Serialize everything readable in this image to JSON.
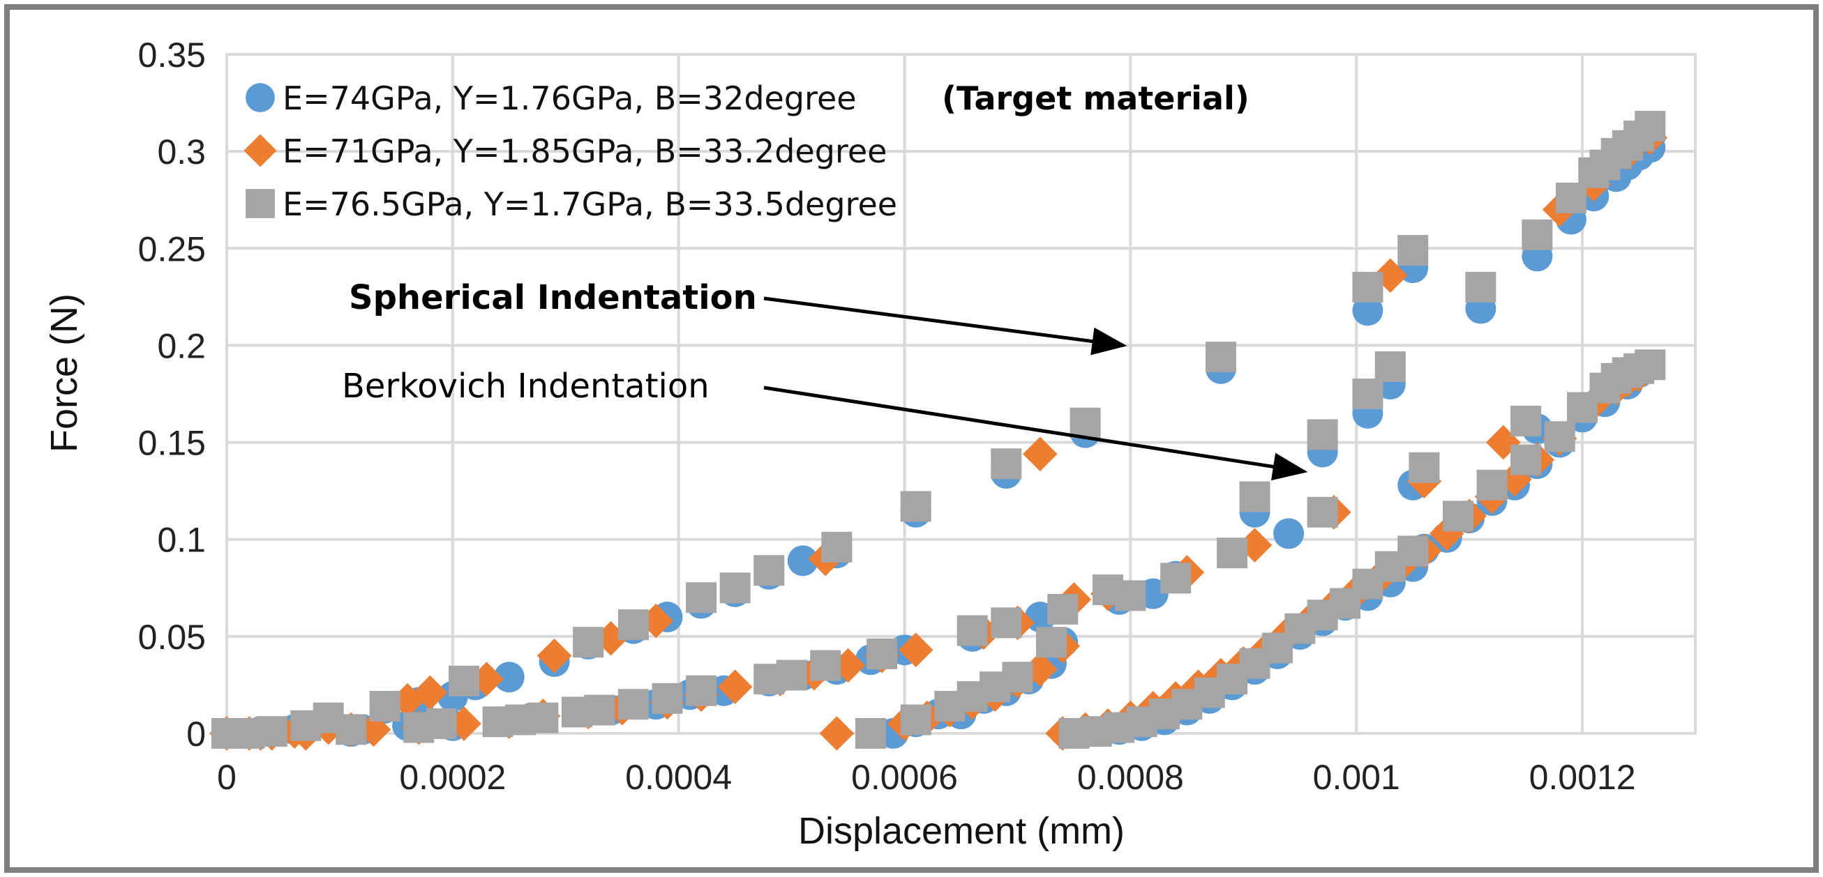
{
  "chart_data": {
    "type": "scatter",
    "title": "",
    "xlabel": "Displacement (mm)",
    "ylabel": "Force (N)",
    "xlim": [
      0,
      0.0013
    ],
    "ylim": [
      0,
      0.35
    ],
    "x_ticks": [
      "0",
      "0.0002",
      "0.0004",
      "0.0006",
      "0.0008",
      "0.001",
      "0.0012"
    ],
    "y_ticks": [
      "0",
      "0.05",
      "0.1",
      "0.15",
      "0.2",
      "0.25",
      "0.3",
      "0.35"
    ],
    "x_tick_values": [
      0,
      0.0002,
      0.0004,
      0.0006,
      0.0008,
      0.001,
      0.0012
    ],
    "y_tick_values": [
      0,
      0.05,
      0.1,
      0.15,
      0.2,
      0.25,
      0.3,
      0.35
    ],
    "grid": true,
    "legend_position": "top-left",
    "legend_note": "(Target material)",
    "series": [
      {
        "name": "E=74GPa, Y=1.76GPa, B=32degree",
        "marker": "circle",
        "color": "#5B9BD5",
        "points": [
          [
            0,
            0
          ],
          [
            2e-05,
            0
          ],
          [
            4e-05,
            0.001
          ],
          [
            6e-05,
            0.002
          ],
          [
            9e-05,
            0.006
          ],
          [
            0.00011,
            0.001
          ],
          [
            0.00014,
            0.013
          ],
          [
            0.00017,
            0.016
          ],
          [
            0.0002,
            0.019
          ],
          [
            0.00022,
            0.025
          ],
          [
            0.00025,
            0.029
          ],
          [
            0.00029,
            0.037
          ],
          [
            0.00032,
            0.046
          ],
          [
            0.00036,
            0.054
          ],
          [
            0.00039,
            0.06
          ],
          [
            0.00042,
            0.067
          ],
          [
            0.00045,
            0.073
          ],
          [
            0.00048,
            0.082
          ],
          [
            0.00051,
            0.089
          ],
          [
            0.00054,
            0.093
          ],
          [
            0.00061,
            0.114
          ],
          [
            0.00069,
            0.134
          ],
          [
            0.00076,
            0.155
          ],
          [
            0.00088,
            0.188
          ],
          [
            0.00101,
            0.218
          ],
          [
            0.00105,
            0.24
          ],
          [
            0.00111,
            0.219
          ],
          [
            0.00116,
            0.246
          ],
          [
            0.00119,
            0.265
          ],
          [
            0.00121,
            0.277
          ],
          [
            0.00123,
            0.287
          ],
          [
            0.00124,
            0.293
          ],
          [
            0.00125,
            0.298
          ],
          [
            0.00126,
            0.302
          ],
          [
            0,
            0
          ],
          [
            3e-05,
            0.001
          ],
          [
            6e-05,
            0.002
          ],
          [
            9e-05,
            0.006
          ],
          [
            0.00012,
            0.002
          ],
          [
            0.00016,
            0.004
          ],
          [
            0.0002,
            0.004
          ],
          [
            0.00024,
            0.006
          ],
          [
            0.00027,
            0.008
          ],
          [
            0.00031,
            0.011
          ],
          [
            0.00034,
            0.012
          ],
          [
            0.00038,
            0.015
          ],
          [
            0.00041,
            0.02
          ],
          [
            0.00044,
            0.022
          ],
          [
            0.00048,
            0.027
          ],
          [
            0.00051,
            0.03
          ],
          [
            0.00054,
            0.033
          ],
          [
            0.00057,
            0.038
          ],
          [
            0.0006,
            0.043
          ],
          [
            0.00066,
            0.05
          ],
          [
            0.00072,
            0.06
          ],
          [
            0.00079,
            0.069
          ],
          [
            0.00082,
            0.072
          ],
          [
            0.00084,
            0.081
          ],
          [
            0.00091,
            0.114
          ],
          [
            0.00094,
            0.103
          ],
          [
            0.00097,
            0.145
          ],
          [
            0.00101,
            0.165
          ],
          [
            0.00103,
            0.18
          ],
          [
            0.00105,
            0.128
          ],
          [
            0.00057,
            0
          ],
          [
            0.00059,
            0
          ],
          [
            0.00061,
            0.006
          ],
          [
            0.00063,
            0.01
          ],
          [
            0.00065,
            0.01
          ],
          [
            0.00067,
            0.018
          ],
          [
            0.00069,
            0.022
          ],
          [
            0.00071,
            0.028
          ],
          [
            0.00073,
            0.036
          ],
          [
            0.00074,
            0.047
          ],
          [
            0.00075,
            0
          ],
          [
            0.00077,
            0.001
          ],
          [
            0.00079,
            0.002
          ],
          [
            0.00081,
            0.004
          ],
          [
            0.00083,
            0.007
          ],
          [
            0.00085,
            0.012
          ],
          [
            0.00087,
            0.018
          ],
          [
            0.00089,
            0.025
          ],
          [
            0.00091,
            0.033
          ],
          [
            0.00093,
            0.041
          ],
          [
            0.00095,
            0.051
          ],
          [
            0.00097,
            0.058
          ],
          [
            0.00099,
            0.066
          ],
          [
            0.00101,
            0.071
          ],
          [
            0.00103,
            0.078
          ],
          [
            0.00105,
            0.086
          ],
          [
            0.00106,
            0.095
          ],
          [
            0.00108,
            0.101
          ],
          [
            0.0011,
            0.111
          ],
          [
            0.00112,
            0.12
          ],
          [
            0.00114,
            0.128
          ],
          [
            0.00116,
            0.139
          ],
          [
            0.00118,
            0.15
          ],
          [
            0.0012,
            0.163
          ],
          [
            0.00122,
            0.171
          ],
          [
            0.00124,
            0.18
          ],
          [
            0.00125,
            0.186
          ],
          [
            0.00116,
            0.157
          ]
        ]
      },
      {
        "name": "E=71GPa, Y=1.85GPa, B=33.2degree",
        "marker": "diamond",
        "color": "#ED7D31",
        "points": [
          [
            0,
            0
          ],
          [
            2e-05,
            0
          ],
          [
            4e-05,
            0
          ],
          [
            7e-05,
            0
          ],
          [
            9e-05,
            0.006
          ],
          [
            0.00011,
            0.002
          ],
          [
            0.00016,
            0.017
          ],
          [
            0.00018,
            0.021
          ],
          [
            0.00023,
            0.028
          ],
          [
            0.00029,
            0.04
          ],
          [
            0.00034,
            0.049
          ],
          [
            0.00038,
            0.058
          ],
          [
            0.00053,
            0.09
          ],
          [
            0.00072,
            0.144
          ],
          [
            0.00103,
            0.236
          ],
          [
            0.00113,
            0.15
          ],
          [
            0.00121,
            0.17
          ],
          [
            0.00123,
            0.178
          ],
          [
            0.00124,
            0.182
          ],
          [
            0.00125,
            0.185
          ],
          [
            0.00118,
            0.27
          ],
          [
            0.00121,
            0.283
          ],
          [
            0.00124,
            0.299
          ],
          [
            0.00126,
            0.307
          ],
          [
            3e-05,
            0
          ],
          [
            6e-05,
            0.001
          ],
          [
            9e-05,
            0.003
          ],
          [
            0.00013,
            0.002
          ],
          [
            0.00017,
            0.003
          ],
          [
            0.00021,
            0.005
          ],
          [
            0.00025,
            0.006
          ],
          [
            0.00028,
            0.009
          ],
          [
            0.00032,
            0.011
          ],
          [
            0.00035,
            0.013
          ],
          [
            0.00039,
            0.016
          ],
          [
            0.00042,
            0.02
          ],
          [
            0.00045,
            0.024
          ],
          [
            0.00049,
            0.028
          ],
          [
            0.00052,
            0.031
          ],
          [
            0.00055,
            0.035
          ],
          [
            0.00058,
            0.04
          ],
          [
            0.00061,
            0.043
          ],
          [
            0.00067,
            0.052
          ],
          [
            0.0007,
            0.057
          ],
          [
            0.00075,
            0.069
          ],
          [
            0.00078,
            0.072
          ],
          [
            0.00085,
            0.083
          ],
          [
            0.00091,
            0.097
          ],
          [
            0.00098,
            0.114
          ],
          [
            0.00106,
            0.13
          ],
          [
            0.00054,
            0
          ],
          [
            0.0006,
            0.005
          ],
          [
            0.00062,
            0.008
          ],
          [
            0.00064,
            0.012
          ],
          [
            0.00066,
            0.016
          ],
          [
            0.00068,
            0.02
          ],
          [
            0.0007,
            0.027
          ],
          [
            0.00072,
            0.033
          ],
          [
            0.00074,
            0.045
          ],
          [
            0.00074,
            0
          ],
          [
            0.00076,
            0.002
          ],
          [
            0.00078,
            0.004
          ],
          [
            0.0008,
            0.008
          ],
          [
            0.00082,
            0.013
          ],
          [
            0.00084,
            0.018
          ],
          [
            0.00086,
            0.024
          ],
          [
            0.00088,
            0.03
          ],
          [
            0.0009,
            0.036
          ],
          [
            0.00092,
            0.043
          ],
          [
            0.00094,
            0.052
          ],
          [
            0.00096,
            0.059
          ],
          [
            0.00098,
            0.066
          ],
          [
            0.001,
            0.073
          ],
          [
            0.00102,
            0.08
          ],
          [
            0.00104,
            0.087
          ],
          [
            0.00106,
            0.094
          ],
          [
            0.00108,
            0.103
          ],
          [
            0.0011,
            0.112
          ],
          [
            0.00112,
            0.122
          ],
          [
            0.00114,
            0.131
          ],
          [
            0.00116,
            0.141
          ],
          [
            0.00118,
            0.152
          ]
        ]
      },
      {
        "name": "E=76.5GPa, Y=1.7GPa, B=33.5degree",
        "marker": "square",
        "color": "#A5A5A5",
        "points": [
          [
            0,
            0
          ],
          [
            2e-05,
            0
          ],
          [
            4e-05,
            0.001
          ],
          [
            7e-05,
            0.004
          ],
          [
            9e-05,
            0.008
          ],
          [
            0.00011,
            0.002
          ],
          [
            0.00014,
            0.014
          ],
          [
            0.00021,
            0.027
          ],
          [
            0.00032,
            0.047
          ],
          [
            0.00036,
            0.056
          ],
          [
            0.00042,
            0.07
          ],
          [
            0.00045,
            0.075
          ],
          [
            0.00048,
            0.084
          ],
          [
            0.00054,
            0.096
          ],
          [
            0.00061,
            0.117
          ],
          [
            0.00069,
            0.139
          ],
          [
            0.00076,
            0.16
          ],
          [
            0.00088,
            0.194
          ],
          [
            0.00101,
            0.23
          ],
          [
            0.00105,
            0.249
          ],
          [
            0.00111,
            0.23
          ],
          [
            0.00116,
            0.257
          ],
          [
            0.00119,
            0.276
          ],
          [
            0.00121,
            0.289
          ],
          [
            0.00122,
            0.293
          ],
          [
            0.00123,
            0.299
          ],
          [
            0.00124,
            0.303
          ],
          [
            0.00125,
            0.308
          ],
          [
            0.00126,
            0.313
          ],
          [
            0.00017,
            0.003
          ],
          [
            0.00019,
            0.005
          ],
          [
            0.00024,
            0.006
          ],
          [
            0.00026,
            0.007
          ],
          [
            0.00028,
            0.008
          ],
          [
            0.00031,
            0.011
          ],
          [
            0.00033,
            0.012
          ],
          [
            0.00036,
            0.015
          ],
          [
            0.00039,
            0.018
          ],
          [
            0.00042,
            0.022
          ],
          [
            0.00048,
            0.028
          ],
          [
            0.0005,
            0.03
          ],
          [
            0.00053,
            0.035
          ],
          [
            0.00058,
            0.041
          ],
          [
            0.00066,
            0.053
          ],
          [
            0.00069,
            0.057
          ],
          [
            0.00074,
            0.064
          ],
          [
            0.00078,
            0.074
          ],
          [
            0.0008,
            0.071
          ],
          [
            0.00084,
            0.08
          ],
          [
            0.00089,
            0.093
          ],
          [
            0.00091,
            0.122
          ],
          [
            0.00097,
            0.114
          ],
          [
            0.00097,
            0.154
          ],
          [
            0.00101,
            0.175
          ],
          [
            0.00103,
            0.189
          ],
          [
            0.00106,
            0.137
          ],
          [
            0.00057,
            0
          ],
          [
            0.00061,
            0.007
          ],
          [
            0.00064,
            0.014
          ],
          [
            0.00066,
            0.019
          ],
          [
            0.00068,
            0.024
          ],
          [
            0.0007,
            0.029
          ],
          [
            0.00073,
            0.047
          ],
          [
            0.00075,
            0
          ],
          [
            0.00077,
            0.001
          ],
          [
            0.00079,
            0.003
          ],
          [
            0.00081,
            0.006
          ],
          [
            0.00083,
            0.01
          ],
          [
            0.00085,
            0.015
          ],
          [
            0.00087,
            0.021
          ],
          [
            0.00089,
            0.028
          ],
          [
            0.00091,
            0.036
          ],
          [
            0.00093,
            0.044
          ],
          [
            0.00095,
            0.054
          ],
          [
            0.00097,
            0.061
          ],
          [
            0.00099,
            0.067
          ],
          [
            0.00101,
            0.077
          ],
          [
            0.00103,
            0.086
          ],
          [
            0.00105,
            0.094
          ],
          [
            0.00109,
            0.112
          ],
          [
            0.00112,
            0.128
          ],
          [
            0.00115,
            0.141
          ],
          [
            0.00115,
            0.161
          ],
          [
            0.00118,
            0.153
          ],
          [
            0.0012,
            0.168
          ],
          [
            0.00122,
            0.178
          ],
          [
            0.00123,
            0.183
          ],
          [
            0.00124,
            0.186
          ],
          [
            0.00125,
            0.188
          ],
          [
            0.00126,
            0.19
          ]
        ]
      }
    ],
    "annotations": [
      {
        "text": "Spherical Indentation",
        "bold": true,
        "arrow_to": [
          0.0008,
          0.2
        ]
      },
      {
        "text": "Berkovich Indentation",
        "bold": false,
        "arrow_to": [
          0.00096,
          0.135
        ]
      }
    ]
  }
}
